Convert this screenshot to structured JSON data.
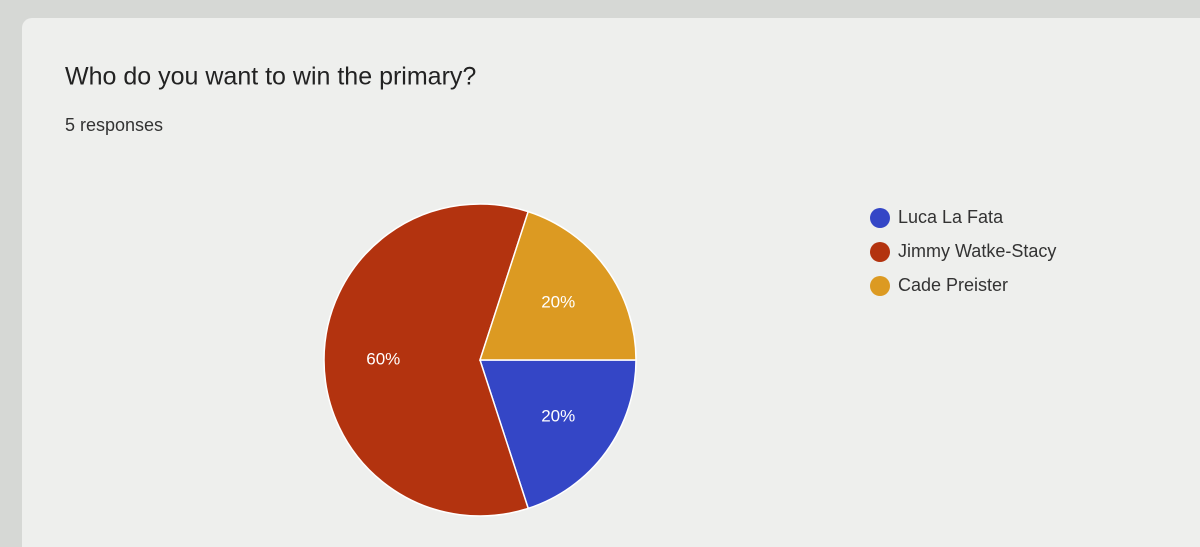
{
  "chart_data": {
    "type": "pie",
    "title": "Who do you want to win the primary?",
    "subtitle": "5 responses",
    "categories": [
      "Luca La Fata",
      "Jimmy Watke-Stacy",
      "Cade Preister"
    ],
    "values": [
      20,
      60,
      20
    ],
    "value_labels": [
      "20%",
      "60%",
      "20%"
    ],
    "colors": [
      "#3446c6",
      "#b3330f",
      "#dc9a22"
    ],
    "legend": "right"
  }
}
